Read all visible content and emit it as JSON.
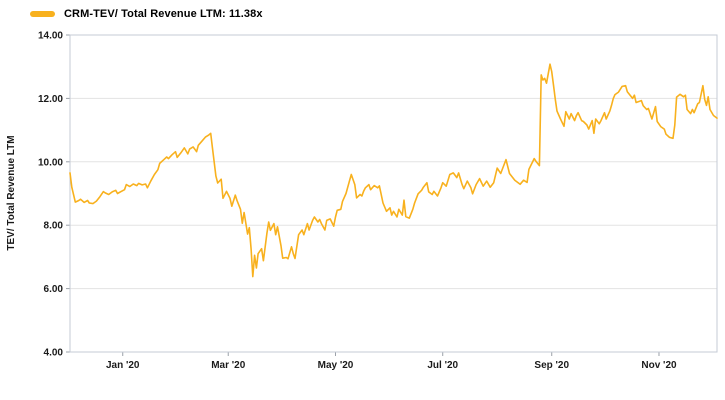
{
  "legend": {
    "series_label": "CRM-TEV/ Total Revenue LTM: 11.38x"
  },
  "colors": {
    "accent": "#F8B11E",
    "grid": "#e3e3e3",
    "border": "#c5cbd6",
    "tick": "#9aa0a8",
    "text": "#1a1a1a",
    "background": "#ffffff"
  },
  "chart_data": {
    "type": "line",
    "title": "CRM-TEV/ Total Revenue LTM: 11.38x",
    "xlabel": "",
    "ylabel": "TEV/ Total Revenue LTM",
    "ylim": [
      4,
      14
    ],
    "grid": true,
    "legend_position": "top-left",
    "x_range": [
      "2019-12-02",
      "2020-12-04"
    ],
    "y_ticks": [
      {
        "value": 14,
        "label": "14.00"
      },
      {
        "value": 12,
        "label": "12.00"
      },
      {
        "value": 10,
        "label": "10.00"
      },
      {
        "value": 8,
        "label": "8.00"
      },
      {
        "value": 6,
        "label": "6.00"
      },
      {
        "value": 4,
        "label": "4.00"
      }
    ],
    "x_ticks": [
      {
        "date": "2020-01-01",
        "label": "Jan '20"
      },
      {
        "date": "2020-03-01",
        "label": "Mar '20"
      },
      {
        "date": "2020-05-01",
        "label": "May '20"
      },
      {
        "date": "2020-07-01",
        "label": "Jul '20"
      },
      {
        "date": "2020-09-01",
        "label": "Sep '20"
      },
      {
        "date": "2020-11-01",
        "label": "Nov '20"
      }
    ],
    "series": [
      {
        "name": "CRM-TEV/ Total Revenue LTM",
        "current_value_label": "11.38x",
        "color": "#F8B11E",
        "points": [
          [
            "2019-12-02",
            9.65
          ],
          [
            "2019-12-03",
            9.2
          ],
          [
            "2019-12-05",
            8.73
          ],
          [
            "2019-12-07",
            8.78
          ],
          [
            "2019-12-08",
            8.82
          ],
          [
            "2019-12-10",
            8.72
          ],
          [
            "2019-12-12",
            8.78
          ],
          [
            "2019-12-13",
            8.7
          ],
          [
            "2019-12-15",
            8.68
          ],
          [
            "2019-12-17",
            8.76
          ],
          [
            "2019-12-19",
            8.9
          ],
          [
            "2019-12-21",
            9.06
          ],
          [
            "2019-12-22",
            9.02
          ],
          [
            "2019-12-24",
            8.97
          ],
          [
            "2019-12-26",
            9.05
          ],
          [
            "2019-12-28",
            9.1
          ],
          [
            "2019-12-29",
            9.0
          ],
          [
            "2019-12-31",
            9.06
          ],
          [
            "2020-01-02",
            9.12
          ],
          [
            "2020-01-03",
            9.28
          ],
          [
            "2020-01-05",
            9.22
          ],
          [
            "2020-01-07",
            9.3
          ],
          [
            "2020-01-09",
            9.25
          ],
          [
            "2020-01-10",
            9.32
          ],
          [
            "2020-01-12",
            9.27
          ],
          [
            "2020-01-14",
            9.3
          ],
          [
            "2020-01-15",
            9.18
          ],
          [
            "2020-01-17",
            9.4
          ],
          [
            "2020-01-19",
            9.6
          ],
          [
            "2020-01-21",
            9.75
          ],
          [
            "2020-01-22",
            9.95
          ],
          [
            "2020-01-24",
            10.05
          ],
          [
            "2020-01-26",
            10.15
          ],
          [
            "2020-01-27",
            10.1
          ],
          [
            "2020-01-29",
            10.22
          ],
          [
            "2020-01-31",
            10.32
          ],
          [
            "2020-02-01",
            10.14
          ],
          [
            "2020-02-03",
            10.28
          ],
          [
            "2020-02-05",
            10.44
          ],
          [
            "2020-02-07",
            10.25
          ],
          [
            "2020-02-08",
            10.4
          ],
          [
            "2020-02-10",
            10.47
          ],
          [
            "2020-02-12",
            10.32
          ],
          [
            "2020-02-13",
            10.52
          ],
          [
            "2020-02-15",
            10.65
          ],
          [
            "2020-02-17",
            10.78
          ],
          [
            "2020-02-19",
            10.85
          ],
          [
            "2020-02-20",
            10.9
          ],
          [
            "2020-02-21",
            10.45
          ],
          [
            "2020-02-23",
            9.55
          ],
          [
            "2020-02-24",
            9.33
          ],
          [
            "2020-02-26",
            9.45
          ],
          [
            "2020-02-27",
            8.85
          ],
          [
            "2020-02-29",
            9.07
          ],
          [
            "2020-03-02",
            8.85
          ],
          [
            "2020-03-03",
            8.6
          ],
          [
            "2020-03-05",
            8.95
          ],
          [
            "2020-03-06",
            8.78
          ],
          [
            "2020-03-08",
            8.5
          ],
          [
            "2020-03-09",
            8.06
          ],
          [
            "2020-03-10",
            8.4
          ],
          [
            "2020-03-12",
            7.72
          ],
          [
            "2020-03-13",
            7.92
          ],
          [
            "2020-03-14",
            7.25
          ],
          [
            "2020-03-15",
            6.38
          ],
          [
            "2020-03-16",
            7.05
          ],
          [
            "2020-03-17",
            6.65
          ],
          [
            "2020-03-18",
            7.1
          ],
          [
            "2020-03-20",
            7.26
          ],
          [
            "2020-03-21",
            6.88
          ],
          [
            "2020-03-23",
            7.74
          ],
          [
            "2020-03-24",
            8.1
          ],
          [
            "2020-03-25",
            7.84
          ],
          [
            "2020-03-27",
            8.05
          ],
          [
            "2020-03-28",
            7.7
          ],
          [
            "2020-03-29",
            7.95
          ],
          [
            "2020-03-31",
            7.35
          ],
          [
            "2020-04-01",
            6.96
          ],
          [
            "2020-04-03",
            6.98
          ],
          [
            "2020-04-04",
            6.94
          ],
          [
            "2020-04-06",
            7.32
          ],
          [
            "2020-04-07",
            7.1
          ],
          [
            "2020-04-08",
            6.95
          ],
          [
            "2020-04-10",
            7.7
          ],
          [
            "2020-04-12",
            7.85
          ],
          [
            "2020-04-13",
            7.7
          ],
          [
            "2020-04-15",
            8.05
          ],
          [
            "2020-04-16",
            7.85
          ],
          [
            "2020-04-18",
            8.15
          ],
          [
            "2020-04-19",
            8.26
          ],
          [
            "2020-04-21",
            8.1
          ],
          [
            "2020-04-22",
            8.18
          ],
          [
            "2020-04-23",
            8.05
          ],
          [
            "2020-04-25",
            7.85
          ],
          [
            "2020-04-26",
            8.15
          ],
          [
            "2020-04-28",
            8.2
          ],
          [
            "2020-04-30",
            7.97
          ],
          [
            "2020-05-01",
            8.26
          ],
          [
            "2020-05-02",
            8.47
          ],
          [
            "2020-05-04",
            8.5
          ],
          [
            "2020-05-05",
            8.75
          ],
          [
            "2020-05-07",
            9.0
          ],
          [
            "2020-05-09",
            9.4
          ],
          [
            "2020-05-10",
            9.6
          ],
          [
            "2020-05-12",
            9.28
          ],
          [
            "2020-05-13",
            8.86
          ],
          [
            "2020-05-15",
            8.97
          ],
          [
            "2020-05-16",
            8.92
          ],
          [
            "2020-05-17",
            9.07
          ],
          [
            "2020-05-18",
            9.18
          ],
          [
            "2020-05-20",
            9.28
          ],
          [
            "2020-05-21",
            9.12
          ],
          [
            "2020-05-23",
            9.25
          ],
          [
            "2020-05-25",
            9.18
          ],
          [
            "2020-05-26",
            9.24
          ],
          [
            "2020-05-28",
            8.7
          ],
          [
            "2020-05-30",
            8.44
          ],
          [
            "2020-06-01",
            8.55
          ],
          [
            "2020-06-02",
            8.32
          ],
          [
            "2020-06-03",
            8.44
          ],
          [
            "2020-06-05",
            8.26
          ],
          [
            "2020-06-06",
            8.5
          ],
          [
            "2020-06-08",
            8.32
          ],
          [
            "2020-06-09",
            8.79
          ],
          [
            "2020-06-10",
            8.27
          ],
          [
            "2020-06-12",
            8.22
          ],
          [
            "2020-06-14",
            8.5
          ],
          [
            "2020-06-15",
            8.7
          ],
          [
            "2020-06-17",
            8.99
          ],
          [
            "2020-06-19",
            9.1
          ],
          [
            "2020-06-20",
            9.2
          ],
          [
            "2020-06-22",
            9.34
          ],
          [
            "2020-06-23",
            9.05
          ],
          [
            "2020-06-25",
            8.97
          ],
          [
            "2020-06-26",
            9.07
          ],
          [
            "2020-06-28",
            8.92
          ],
          [
            "2020-06-30",
            9.18
          ],
          [
            "2020-07-01",
            9.34
          ],
          [
            "2020-07-03",
            9.23
          ],
          [
            "2020-07-05",
            9.6
          ],
          [
            "2020-07-07",
            9.65
          ],
          [
            "2020-07-09",
            9.5
          ],
          [
            "2020-07-10",
            9.65
          ],
          [
            "2020-07-12",
            9.28
          ],
          [
            "2020-07-13",
            9.15
          ],
          [
            "2020-07-15",
            9.39
          ],
          [
            "2020-07-17",
            9.18
          ],
          [
            "2020-07-18",
            8.99
          ],
          [
            "2020-07-20",
            9.28
          ],
          [
            "2020-07-22",
            9.47
          ],
          [
            "2020-07-24",
            9.23
          ],
          [
            "2020-07-26",
            9.39
          ],
          [
            "2020-07-28",
            9.2
          ],
          [
            "2020-07-30",
            9.34
          ],
          [
            "2020-08-01",
            9.8
          ],
          [
            "2020-08-03",
            9.63
          ],
          [
            "2020-08-06",
            10.07
          ],
          [
            "2020-08-08",
            9.63
          ],
          [
            "2020-08-11",
            9.42
          ],
          [
            "2020-08-14",
            9.29
          ],
          [
            "2020-08-16",
            9.42
          ],
          [
            "2020-08-18",
            9.35
          ],
          [
            "2020-08-19",
            9.76
          ],
          [
            "2020-08-22",
            10.1
          ],
          [
            "2020-08-23",
            10.02
          ],
          [
            "2020-08-25",
            9.88
          ],
          [
            "2020-08-26",
            12.74
          ],
          [
            "2020-08-27",
            12.58
          ],
          [
            "2020-08-28",
            12.63
          ],
          [
            "2020-08-29",
            12.48
          ],
          [
            "2020-08-31",
            13.08
          ],
          [
            "2020-09-01",
            12.85
          ],
          [
            "2020-09-02",
            12.42
          ],
          [
            "2020-09-03",
            11.97
          ],
          [
            "2020-09-04",
            11.6
          ],
          [
            "2020-09-06",
            11.35
          ],
          [
            "2020-09-08",
            11.12
          ],
          [
            "2020-09-09",
            11.58
          ],
          [
            "2020-09-11",
            11.35
          ],
          [
            "2020-09-12",
            11.52
          ],
          [
            "2020-09-14",
            11.3
          ],
          [
            "2020-09-15",
            11.45
          ],
          [
            "2020-09-16",
            11.55
          ],
          [
            "2020-09-18",
            11.3
          ],
          [
            "2020-09-19",
            11.27
          ],
          [
            "2020-09-21",
            11.16
          ],
          [
            "2020-09-22",
            11.03
          ],
          [
            "2020-09-24",
            11.3
          ],
          [
            "2020-09-25",
            10.9
          ],
          [
            "2020-09-26",
            11.35
          ],
          [
            "2020-09-28",
            11.2
          ],
          [
            "2020-09-29",
            11.3
          ],
          [
            "2020-10-01",
            11.55
          ],
          [
            "2020-10-02",
            11.35
          ],
          [
            "2020-10-04",
            11.6
          ],
          [
            "2020-10-05",
            11.78
          ],
          [
            "2020-10-06",
            12.0
          ],
          [
            "2020-10-07",
            12.12
          ],
          [
            "2020-10-09",
            12.2
          ],
          [
            "2020-10-11",
            12.38
          ],
          [
            "2020-10-13",
            12.4
          ],
          [
            "2020-10-14",
            12.21
          ],
          [
            "2020-10-17",
            12.0
          ],
          [
            "2020-10-18",
            12.1
          ],
          [
            "2020-10-19",
            11.87
          ],
          [
            "2020-10-22",
            11.93
          ],
          [
            "2020-10-23",
            11.77
          ],
          [
            "2020-10-25",
            11.65
          ],
          [
            "2020-10-26",
            11.68
          ],
          [
            "2020-10-28",
            11.35
          ],
          [
            "2020-10-30",
            11.74
          ],
          [
            "2020-10-31",
            11.27
          ],
          [
            "2020-11-02",
            11.11
          ],
          [
            "2020-11-04",
            11.03
          ],
          [
            "2020-11-05",
            10.87
          ],
          [
            "2020-11-07",
            10.77
          ],
          [
            "2020-11-09",
            10.74
          ],
          [
            "2020-11-10",
            11.16
          ],
          [
            "2020-11-11",
            12.04
          ],
          [
            "2020-11-13",
            12.13
          ],
          [
            "2020-11-15",
            12.05
          ],
          [
            "2020-11-16",
            12.1
          ],
          [
            "2020-11-17",
            11.65
          ],
          [
            "2020-11-19",
            11.52
          ],
          [
            "2020-11-20",
            11.65
          ],
          [
            "2020-11-21",
            11.55
          ],
          [
            "2020-11-23",
            11.83
          ],
          [
            "2020-11-24",
            11.87
          ],
          [
            "2020-11-26",
            12.4
          ],
          [
            "2020-11-27",
            11.97
          ],
          [
            "2020-11-28",
            11.78
          ],
          [
            "2020-11-29",
            12.05
          ],
          [
            "2020-11-30",
            11.65
          ],
          [
            "2020-12-02",
            11.46
          ],
          [
            "2020-12-04",
            11.38
          ]
        ]
      }
    ]
  }
}
